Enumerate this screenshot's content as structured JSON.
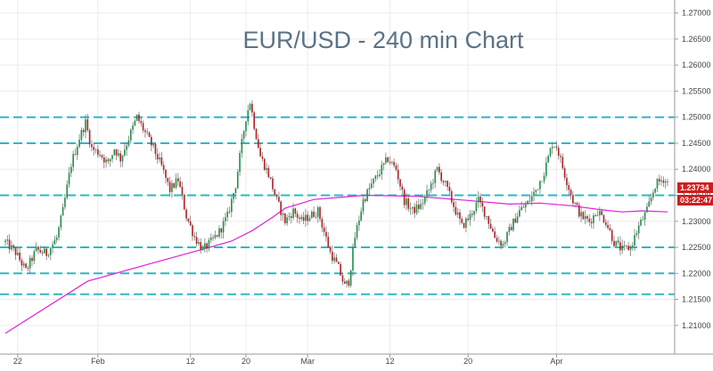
{
  "chart_data": {
    "type": "candlestick",
    "title": "EUR/USD - 240 min Chart",
    "x_tick_labels": [
      "22",
      "Feb",
      "12",
      "20",
      "Mar",
      "12",
      "20",
      "Apr"
    ],
    "y_ticks": [
      "1.27000",
      "1.26500",
      "1.26000",
      "1.25500",
      "1.25000",
      "1.24500",
      "1.24000",
      "1.23500",
      "1.23000",
      "1.22500",
      "1.22000",
      "1.21500",
      "1.21000"
    ],
    "ylim": [
      1.2045,
      1.2725
    ],
    "horizontal_levels": [
      1.25,
      1.245,
      1.235,
      1.225,
      1.22,
      1.216
    ],
    "price_label": "1.23734",
    "timer_label": "03:22:47",
    "moving_average": [
      [
        0,
        1.2085
      ],
      [
        40,
        1.2185
      ],
      [
        70,
        1.2218
      ],
      [
        90,
        1.224
      ],
      [
        110,
        1.2262
      ],
      [
        120,
        1.2282
      ],
      [
        130,
        1.2308
      ],
      [
        136,
        1.2325
      ],
      [
        150,
        1.2342
      ],
      [
        175,
        1.235
      ],
      [
        200,
        1.2348
      ],
      [
        225,
        1.234
      ],
      [
        245,
        1.2333
      ],
      [
        260,
        1.2335
      ],
      [
        275,
        1.233
      ],
      [
        290,
        1.2322
      ],
      [
        300,
        1.2318
      ],
      [
        310,
        1.232
      ],
      [
        322,
        1.2318
      ]
    ],
    "close_path": [
      [
        0,
        1.226
      ],
      [
        5,
        1.224
      ],
      [
        10,
        1.2205
      ],
      [
        15,
        1.2245
      ],
      [
        20,
        1.2238
      ],
      [
        25,
        1.2268
      ],
      [
        28,
        1.232
      ],
      [
        32,
        1.241
      ],
      [
        36,
        1.246
      ],
      [
        39,
        1.249
      ],
      [
        42,
        1.244
      ],
      [
        46,
        1.243
      ],
      [
        50,
        1.241
      ],
      [
        53,
        1.244
      ],
      [
        56,
        1.242
      ],
      [
        60,
        1.246
      ],
      [
        64,
        1.25
      ],
      [
        68,
        1.247
      ],
      [
        72,
        1.244
      ],
      [
        76,
        1.2405
      ],
      [
        80,
        1.236
      ],
      [
        84,
        1.238
      ],
      [
        88,
        1.231
      ],
      [
        92,
        1.227
      ],
      [
        96,
        1.2245
      ],
      [
        100,
        1.226
      ],
      [
        104,
        1.228
      ],
      [
        108,
        1.231
      ],
      [
        112,
        1.237
      ],
      [
        115,
        1.245
      ],
      [
        117,
        1.25
      ],
      [
        119,
        1.253
      ],
      [
        121,
        1.2485
      ],
      [
        124,
        1.2425
      ],
      [
        128,
        1.239
      ],
      [
        132,
        1.234
      ],
      [
        136,
        1.23
      ],
      [
        140,
        1.232
      ],
      [
        144,
        1.23
      ],
      [
        148,
        1.231
      ],
      [
        152,
        1.232
      ],
      [
        155,
        1.228
      ],
      [
        158,
        1.224
      ],
      [
        162,
        1.221
      ],
      [
        165,
        1.2175
      ],
      [
        167,
        1.2185
      ],
      [
        170,
        1.227
      ],
      [
        174,
        1.234
      ],
      [
        178,
        1.237
      ],
      [
        182,
        1.2395
      ],
      [
        186,
        1.242
      ],
      [
        190,
        1.24
      ],
      [
        194,
        1.234
      ],
      [
        198,
        1.232
      ],
      [
        202,
        1.233
      ],
      [
        206,
        1.236
      ],
      [
        210,
        1.24
      ],
      [
        214,
        1.237
      ],
      [
        218,
        1.233
      ],
      [
        222,
        1.229
      ],
      [
        226,
        1.231
      ],
      [
        230,
        1.234
      ],
      [
        234,
        1.231
      ],
      [
        238,
        1.227
      ],
      [
        242,
        1.2255
      ],
      [
        246,
        1.229
      ],
      [
        250,
        1.232
      ],
      [
        254,
        1.2335
      ],
      [
        258,
        1.236
      ],
      [
        262,
        1.2395
      ],
      [
        266,
        1.245
      ],
      [
        268,
        1.2445
      ],
      [
        272,
        1.239
      ],
      [
        276,
        1.234
      ],
      [
        280,
        1.231
      ],
      [
        284,
        1.23
      ],
      [
        288,
        1.232
      ],
      [
        292,
        1.23
      ],
      [
        296,
        1.226
      ],
      [
        300,
        1.2245
      ],
      [
        304,
        1.225
      ],
      [
        308,
        1.229
      ],
      [
        312,
        1.232
      ],
      [
        316,
        1.237
      ],
      [
        320,
        1.2382
      ],
      [
        322,
        1.2373
      ]
    ]
  }
}
